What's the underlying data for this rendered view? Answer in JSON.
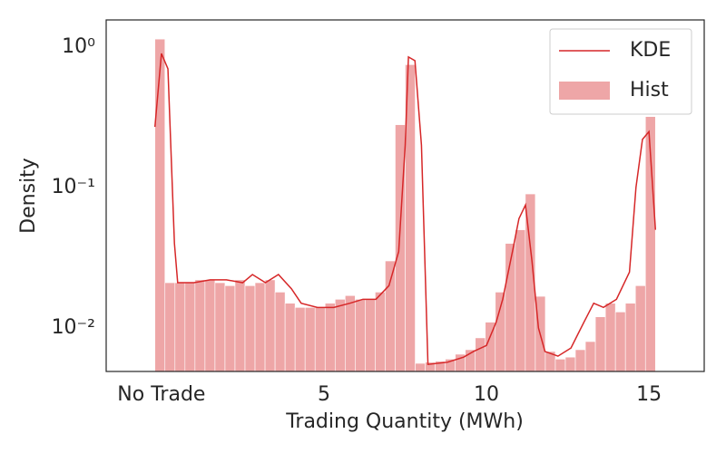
{
  "chart_data": {
    "type": "histogram",
    "xlabel": "Trading Quantity (MWh)",
    "ylabel": "Density",
    "xlim": [
      -1.7,
      16.7
    ],
    "ylim": [
      0.0049,
      1.56
    ],
    "yscale": "log",
    "grid": false,
    "legend": "upper right",
    "xticks": [
      {
        "value": 0,
        "label": "No Trade"
      },
      5,
      10,
      15
    ],
    "yticks": [
      {
        "value": 0.01,
        "label": "10⁻²"
      },
      {
        "value": 0.1,
        "label": "10⁻¹"
      },
      {
        "value": 1,
        "label": "10⁰"
      }
    ],
    "series": [
      {
        "name": "KDE",
        "type": "line",
        "color": "#d62728",
        "x": [
          -0.2,
          0,
          0.2,
          0.4,
          0.5,
          1,
          1.5,
          2,
          2.5,
          2.8,
          3.2,
          3.6,
          4,
          4.3,
          4.8,
          5.3,
          5.8,
          6.2,
          6.6,
          7,
          7.3,
          7.5,
          7.6,
          7.8,
          8,
          8.2,
          8.8,
          9.3,
          9.6,
          10,
          10.3,
          10.5,
          10.8,
          11,
          11.2,
          11.4,
          11.6,
          11.8,
          12.2,
          12.6,
          13,
          13.3,
          13.6,
          14,
          14.4,
          14.6,
          14.8,
          15,
          15.2
        ],
        "values": [
          0.27,
          0.9,
          0.7,
          0.04,
          0.021,
          0.021,
          0.022,
          0.022,
          0.021,
          0.024,
          0.021,
          0.024,
          0.019,
          0.015,
          0.014,
          0.014,
          0.015,
          0.016,
          0.016,
          0.02,
          0.035,
          0.2,
          0.85,
          0.8,
          0.2,
          0.0055,
          0.0057,
          0.0062,
          0.0068,
          0.0075,
          0.011,
          0.016,
          0.035,
          0.06,
          0.075,
          0.03,
          0.01,
          0.0068,
          0.0063,
          0.0072,
          0.011,
          0.015,
          0.014,
          0.016,
          0.025,
          0.1,
          0.22,
          0.25,
          0.05
        ]
      },
      {
        "name": "Hist",
        "type": "hist",
        "color": "#e8888a",
        "bins": [
          -0.2,
          0.108,
          0.416,
          0.724,
          1.032,
          1.34,
          1.648,
          1.956,
          2.264,
          2.572,
          2.88,
          3.188,
          3.496,
          3.804,
          4.112,
          4.42,
          4.728,
          5.036,
          5.344,
          5.652,
          5.96,
          6.268,
          6.576,
          6.884,
          7.192,
          7.5,
          7.808,
          8.116,
          8.424,
          8.732,
          9.04,
          9.348,
          9.656,
          9.964,
          10.272,
          10.58,
          10.888,
          11.196,
          11.504,
          11.812,
          12.12,
          12.428,
          12.736,
          13.044,
          13.352,
          13.66,
          13.968,
          14.276,
          14.584,
          14.892,
          15.2
        ],
        "values": [
          1.14,
          0.021,
          0.021,
          0.021,
          0.022,
          0.022,
          0.021,
          0.02,
          0.022,
          0.02,
          0.021,
          0.022,
          0.018,
          0.015,
          0.014,
          0.014,
          0.014,
          0.015,
          0.016,
          0.017,
          0.016,
          0.016,
          0.018,
          0.03,
          0.28,
          0.75,
          0.0056,
          0.0057,
          0.0058,
          0.006,
          0.0065,
          0.007,
          0.0085,
          0.011,
          0.018,
          0.04,
          0.05,
          0.09,
          0.0168,
          0.0068,
          0.006,
          0.0062,
          0.007,
          0.008,
          0.012,
          0.015,
          0.013,
          0.015,
          0.02,
          0.32
        ]
      }
    ]
  }
}
